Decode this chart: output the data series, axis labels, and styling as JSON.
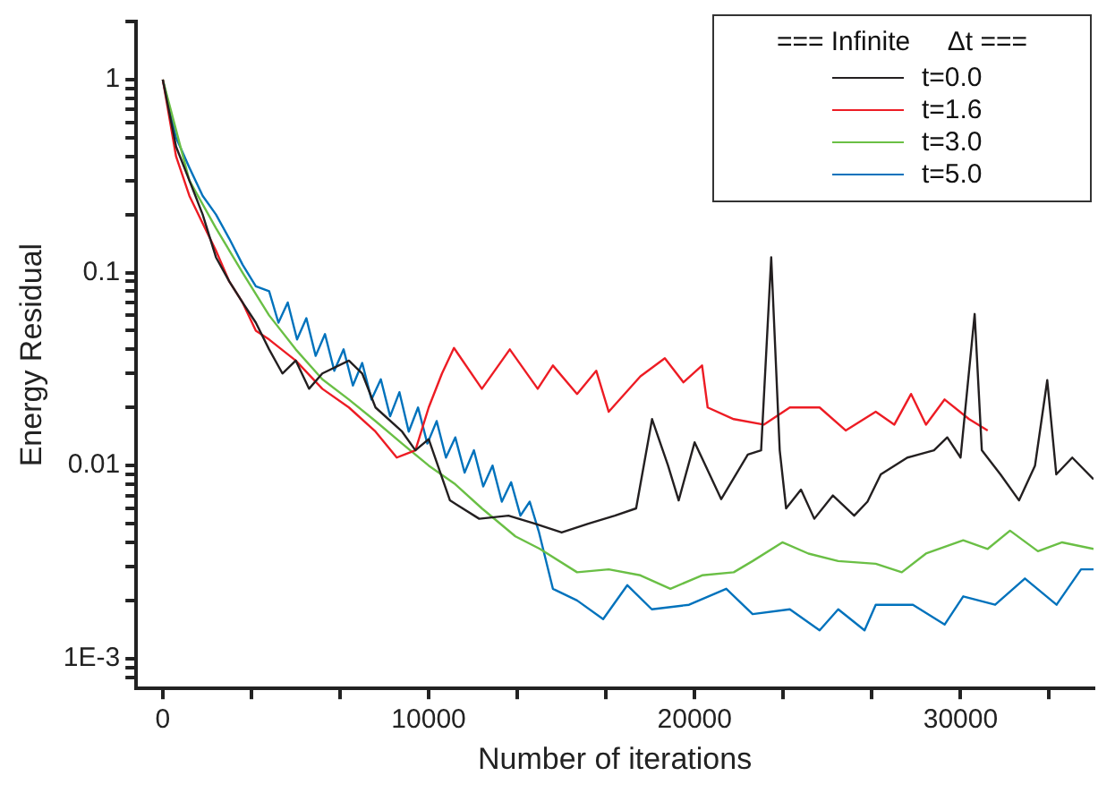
{
  "chart_data": {
    "type": "line",
    "xlabel": "Number of iterations",
    "ylabel": "Energy Residual",
    "legend_title": "=== Infinite     Δt ===",
    "legend": "top right",
    "log": "y",
    "grid": false,
    "marker": "none",
    "line_style": "solid",
    "xlim": [
      -1000,
      35000
    ],
    "xticks": [
      0,
      {
        "value": 3333.3,
        "label": null
      },
      {
        "value": 6666.7,
        "label": null
      },
      10000,
      {
        "value": 13333.3,
        "label": null
      },
      {
        "value": 16666.7,
        "label": null
      },
      20000,
      {
        "value": 23333.3,
        "label": null
      },
      {
        "value": 26666.7,
        "label": null
      },
      30000,
      {
        "value": 33333.3,
        "label": null
      }
    ],
    "ylim": [
      0.0007,
      2
    ],
    "yticks": [
      {
        "value": 0.0008,
        "label": null
      },
      {
        "value": 0.0009,
        "label": null
      },
      {
        "value": 0.001,
        "label": "1E-3"
      },
      {
        "value": 0.002,
        "label": null
      },
      {
        "value": 0.003,
        "label": null
      },
      {
        "value": 0.004,
        "label": null
      },
      {
        "value": 0.005,
        "label": null
      },
      {
        "value": 0.006,
        "label": null
      },
      {
        "value": 0.007,
        "label": null
      },
      {
        "value": 0.008,
        "label": null
      },
      {
        "value": 0.009,
        "label": null
      },
      0.01,
      {
        "value": 0.02,
        "label": null
      },
      {
        "value": 0.03,
        "label": null
      },
      {
        "value": 0.04,
        "label": null
      },
      {
        "value": 0.05,
        "label": null
      },
      {
        "value": 0.06,
        "label": null
      },
      {
        "value": 0.07,
        "label": null
      },
      {
        "value": 0.08,
        "label": null
      },
      {
        "value": 0.09,
        "label": null
      },
      0.1,
      {
        "value": 0.2,
        "label": null
      },
      {
        "value": 0.3,
        "label": null
      },
      {
        "value": 0.4,
        "label": null
      },
      {
        "value": 0.5,
        "label": null
      },
      {
        "value": 0.6,
        "label": null
      },
      {
        "value": 0.7,
        "label": null
      },
      {
        "value": 0.8,
        "label": null
      },
      {
        "value": 0.9,
        "label": null
      },
      1,
      {
        "value": 2,
        "label": null
      }
    ],
    "series": [
      {
        "name": "t=0.0",
        "color": "#231f20",
        "x": [
          0,
          500,
          1000,
          1500,
          2000,
          2500,
          3000,
          3500,
          4000,
          4500,
          5000,
          5500,
          6000,
          7000,
          7500,
          8000,
          9000,
          9500,
          10000,
          10800,
          11900,
          13000,
          14000,
          15000,
          16000,
          17000,
          17800,
          18400,
          19000,
          19400,
          20000,
          21000,
          22000,
          22500,
          22880,
          23200,
          23440,
          24000,
          24500,
          25200,
          26000,
          26500,
          27000,
          28000,
          29000,
          29500,
          30000,
          30530,
          30800,
          31500,
          32200,
          32800,
          33260,
          33600,
          34200,
          35000
        ],
        "values": [
          1,
          0.45,
          0.3,
          0.2,
          0.12,
          0.09,
          0.07,
          0.055,
          0.04,
          0.03,
          0.035,
          0.025,
          0.03,
          0.035,
          0.03,
          0.02,
          0.015,
          0.012,
          0.0137,
          0.0066,
          0.0053,
          0.0055,
          0.005,
          0.0045,
          0.005,
          0.0055,
          0.006,
          0.0174,
          0.01,
          0.0066,
          0.0132,
          0.0067,
          0.0114,
          0.012,
          0.12,
          0.012,
          0.006,
          0.0075,
          0.0053,
          0.007,
          0.0055,
          0.0065,
          0.009,
          0.011,
          0.012,
          0.014,
          0.011,
          0.061,
          0.012,
          0.009,
          0.0066,
          0.01,
          0.0277,
          0.009,
          0.011,
          0.0085
        ]
      },
      {
        "name": "t=1.6",
        "color": "#ed1c24",
        "x": [
          0,
          500,
          1000,
          1500,
          2000,
          2500,
          3000,
          3500,
          4000,
          5000,
          6000,
          7000,
          8000,
          8800,
          9500,
          10000,
          10500,
          10950,
          12000,
          13050,
          14100,
          14670,
          15580,
          16300,
          16770,
          17960,
          18880,
          19580,
          20280,
          20490,
          21470,
          22600,
          23580,
          24700,
          25680,
          26810,
          27510,
          28140,
          28700,
          29400,
          30320,
          31020
        ],
        "values": [
          1,
          0.4,
          0.25,
          0.18,
          0.13,
          0.09,
          0.07,
          0.05,
          0.045,
          0.035,
          0.025,
          0.02,
          0.015,
          0.011,
          0.012,
          0.02,
          0.03,
          0.0407,
          0.025,
          0.04,
          0.025,
          0.033,
          0.0235,
          0.031,
          0.019,
          0.029,
          0.036,
          0.027,
          0.033,
          0.02,
          0.0174,
          0.0163,
          0.02,
          0.02,
          0.0152,
          0.019,
          0.0163,
          0.0235,
          0.0163,
          0.022,
          0.0174,
          0.0152
        ]
      },
      {
        "name": "t=3.0",
        "color": "#6abf45",
        "x": [
          0,
          1000,
          2000,
          3000,
          4000,
          5000,
          6000,
          7000,
          8000,
          9000,
          10000,
          11000,
          12000,
          13260,
          14180,
          15580,
          16770,
          17960,
          19090,
          20280,
          21470,
          22180,
          23300,
          24280,
          25400,
          26810,
          27790,
          28700,
          30100,
          31020,
          31860,
          32910,
          33820,
          35000
        ],
        "values": [
          1,
          0.3,
          0.17,
          0.1,
          0.06,
          0.04,
          0.028,
          0.022,
          0.017,
          0.013,
          0.01,
          0.008,
          0.006,
          0.0043,
          0.0037,
          0.0028,
          0.0029,
          0.0027,
          0.0023,
          0.0027,
          0.0028,
          0.0032,
          0.004,
          0.0035,
          0.0032,
          0.0031,
          0.0028,
          0.0035,
          0.0041,
          0.0037,
          0.0046,
          0.0036,
          0.004,
          0.0037
        ]
      },
      {
        "name": "t=5.0",
        "color": "#0072bc",
        "x": [
          0,
          500,
          1000,
          1500,
          2000,
          2500,
          3000,
          3500,
          4000,
          4350,
          4700,
          5050,
          5400,
          5750,
          6100,
          6450,
          6800,
          7150,
          7500,
          7850,
          8200,
          8550,
          8900,
          9250,
          9600,
          9950,
          10300,
          10650,
          11000,
          11350,
          11700,
          12050,
          12400,
          12750,
          13100,
          13450,
          13800,
          14150,
          14670,
          15580,
          16560,
          17470,
          18390,
          19790,
          21190,
          22180,
          23580,
          24700,
          25400,
          26390,
          26810,
          28210,
          29400,
          30100,
          31300,
          32420,
          33610,
          34530,
          35000
        ],
        "values": [
          1,
          0.5,
          0.35,
          0.25,
          0.2,
          0.15,
          0.11,
          0.085,
          0.08,
          0.055,
          0.07,
          0.045,
          0.058,
          0.037,
          0.048,
          0.031,
          0.04,
          0.026,
          0.034,
          0.022,
          0.028,
          0.018,
          0.024,
          0.015,
          0.02,
          0.013,
          0.017,
          0.011,
          0.014,
          0.0092,
          0.012,
          0.0078,
          0.01,
          0.0065,
          0.0082,
          0.0055,
          0.0065,
          0.0045,
          0.0023,
          0.002,
          0.0016,
          0.0024,
          0.0018,
          0.0019,
          0.0023,
          0.0017,
          0.0018,
          0.0014,
          0.0018,
          0.0014,
          0.0019,
          0.0019,
          0.0015,
          0.0021,
          0.0019,
          0.0026,
          0.0019,
          0.0029,
          0.0029
        ]
      }
    ]
  }
}
